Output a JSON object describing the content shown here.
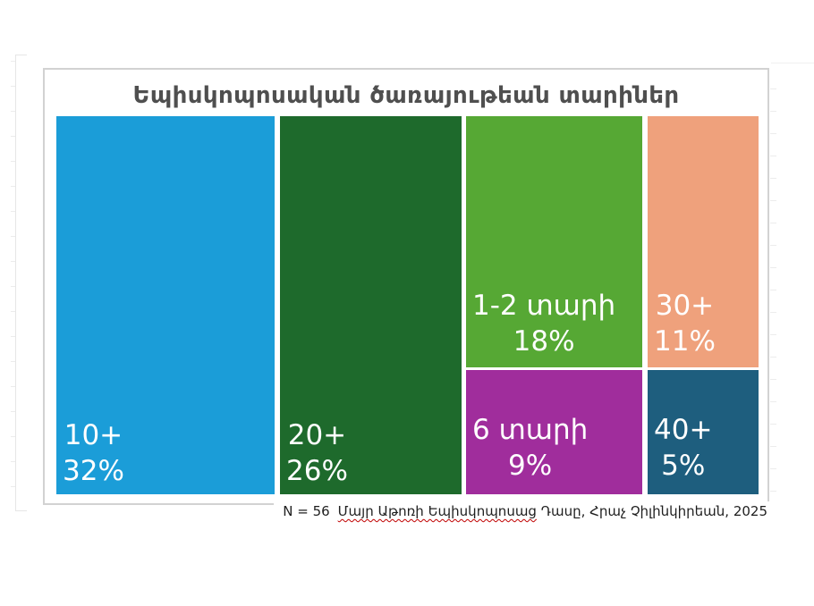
{
  "chart_data": {
    "type": "treemap",
    "title": "Եպիսկոպոսական ծառայութեան տարիներ",
    "title_color": "#4F4F4F",
    "legend": "none",
    "label_text_color": "#FFFFFF",
    "background_color": "#FFFFFF",
    "frame_border_color": "#D2D2D2",
    "segments": [
      {
        "label": "10+",
        "value": 32,
        "value_label": "32%",
        "color": "#1B9DD8"
      },
      {
        "label": "20+",
        "value": 26,
        "value_label": "26%",
        "color": "#1E6A2C"
      },
      {
        "label": "1-2 տարի",
        "value": 18,
        "value_label": "18%",
        "color": "#56A834"
      },
      {
        "label": "30+",
        "value": 11,
        "value_label": "11%",
        "color": "#EFA17C"
      },
      {
        "label": "6 տարի",
        "value": 9,
        "value_label": "9%",
        "color": "#A02D9C"
      },
      {
        "label": "40+",
        "value": 5,
        "value_label": "5%",
        "color": "#1E5E7E"
      }
    ],
    "footnote": {
      "n_label": "N = 56",
      "source_flagged": "Մայր Աթոռի Եպիսկոպոսաց",
      "source_rest": " Դասը, Հրաչ Չիլինկիրեան, 2025",
      "spellcheck_color": "#C00000"
    }
  }
}
